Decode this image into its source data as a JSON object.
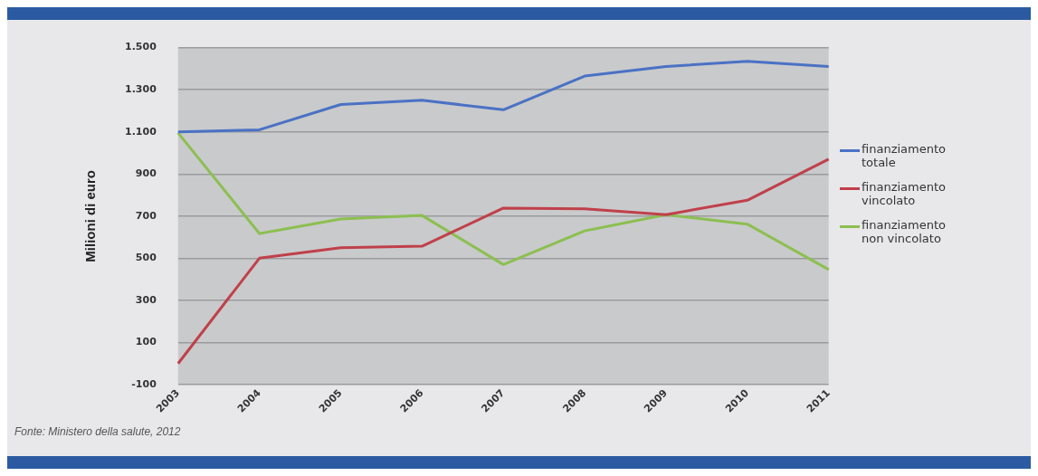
{
  "chart_data": {
    "type": "line",
    "ylabel": "Milioni di euro",
    "categories": [
      "2003",
      "2004",
      "2005",
      "2006",
      "2007",
      "2008",
      "2009",
      "2010",
      "2011"
    ],
    "series": [
      {
        "name": "finanziamento totale",
        "color": "#4a72c4",
        "values": [
          1100,
          1110,
          1230,
          1250,
          1205,
          1365,
          1410,
          1435,
          1410
        ]
      },
      {
        "name": "finanziamento vincolato",
        "color": "#c0404a",
        "values": [
          0,
          500,
          550,
          557,
          738,
          735,
          707,
          775,
          970
        ]
      },
      {
        "name": "finanziamento non vincolato",
        "color": "#8cbf50",
        "values": [
          1095,
          617,
          686,
          703,
          470,
          630,
          707,
          662,
          446
        ]
      }
    ],
    "ylim": [
      -100,
      1500
    ],
    "yticks": [
      -100,
      100,
      300,
      500,
      700,
      900,
      {
        "value": 1100,
        "label": "1.100"
      },
      {
        "value": 1300,
        "label": "1.300"
      },
      {
        "value": 1500,
        "label": "1.500"
      }
    ],
    "grid": "y",
    "legend": "right",
    "marker": "none",
    "line_style": "solid",
    "annotations": [
      "Fonte: Ministero della salute, 2012"
    ]
  }
}
